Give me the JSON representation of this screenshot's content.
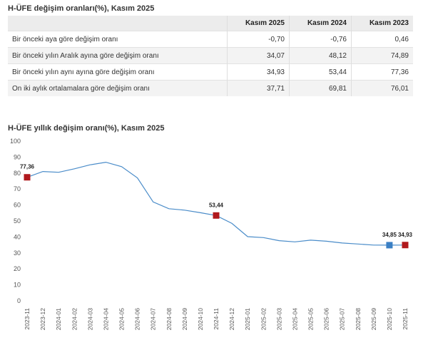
{
  "table": {
    "title": "H-ÜFE değişim oranları(%), Kasım 2025",
    "columns": [
      "",
      "Kasım 2025",
      "Kasım 2024",
      "Kasım 2023"
    ],
    "rows": [
      {
        "label": "Bir önceki aya göre değişim oranı",
        "values": [
          "-0,70",
          "-0,76",
          "0,46"
        ]
      },
      {
        "label": "Bir önceki yılın Aralık ayına göre değişim oranı",
        "values": [
          "34,07",
          "48,12",
          "74,89"
        ]
      },
      {
        "label": "Bir önceki yılın aynı ayına göre değişim oranı",
        "values": [
          "34,93",
          "53,44",
          "77,36"
        ]
      },
      {
        "label": "On iki aylık ortalamalara göre değişim oranı",
        "values": [
          "37,71",
          "69,81",
          "76,01"
        ]
      }
    ]
  },
  "chart_data": {
    "type": "line",
    "title": "H-ÜFE yıllık değişim oranı(%), Kasım 2025",
    "xlabel": "",
    "ylabel": "",
    "ylim": [
      0,
      100
    ],
    "yticks": [
      0,
      10,
      20,
      30,
      40,
      50,
      60,
      70,
      80,
      90,
      100
    ],
    "grid": false,
    "categories": [
      "2023-11",
      "2023-12",
      "2024-01",
      "2024-02",
      "2024-03",
      "2024-04",
      "2024-05",
      "2024-06",
      "2024-07",
      "2024-08",
      "2024-09",
      "2024-10",
      "2024-11",
      "2024-12",
      "2025-01",
      "2025-02",
      "2025-03",
      "2025-04",
      "2025-05",
      "2025-06",
      "2025-07",
      "2025-08",
      "2025-09",
      "2025-10",
      "2025-11"
    ],
    "values": [
      77.36,
      81.0,
      80.5,
      82.7,
      85.2,
      86.8,
      84.0,
      77.0,
      61.9,
      57.7,
      56.8,
      55.2,
      53.44,
      48.5,
      40.2,
      39.6,
      37.7,
      36.9,
      38.0,
      37.3,
      36.2,
      35.6,
      34.9,
      34.85,
      34.93
    ],
    "line_color": "#4a8cc9",
    "markers": [
      {
        "index": 0,
        "label": "77,36",
        "color": "#b0191d"
      },
      {
        "index": 12,
        "label": "53,44",
        "color": "#b0191d"
      },
      {
        "index": 23,
        "label": "34,85",
        "color": "#3a7fc4"
      },
      {
        "index": 24,
        "label": "34,93",
        "color": "#b0191d"
      }
    ]
  }
}
